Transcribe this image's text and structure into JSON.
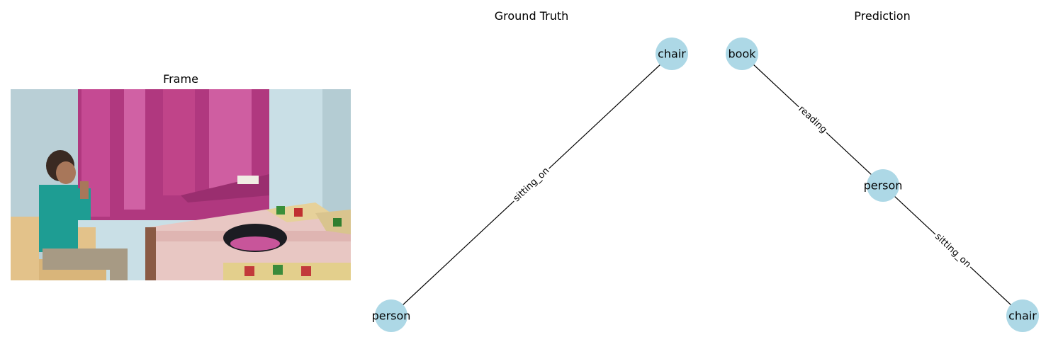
{
  "frame": {
    "title": "Frame"
  },
  "ground_truth": {
    "title": "Ground Truth",
    "nodes": [
      {
        "id": "chair",
        "label": "chair"
      },
      {
        "id": "person",
        "label": "person"
      }
    ],
    "edges": [
      {
        "from": "person",
        "to": "chair",
        "label": "sitting_on"
      }
    ]
  },
  "prediction": {
    "title": "Prediction",
    "nodes": [
      {
        "id": "book",
        "label": "book"
      },
      {
        "id": "person",
        "label": "person"
      },
      {
        "id": "chair",
        "label": "chair"
      }
    ],
    "edges": [
      {
        "from": "person",
        "to": "book",
        "label": "reading"
      },
      {
        "from": "person",
        "to": "chair",
        "label": "sitting_on"
      }
    ]
  },
  "colors": {
    "node_fill": "#add8e6",
    "edge": "#000000"
  }
}
